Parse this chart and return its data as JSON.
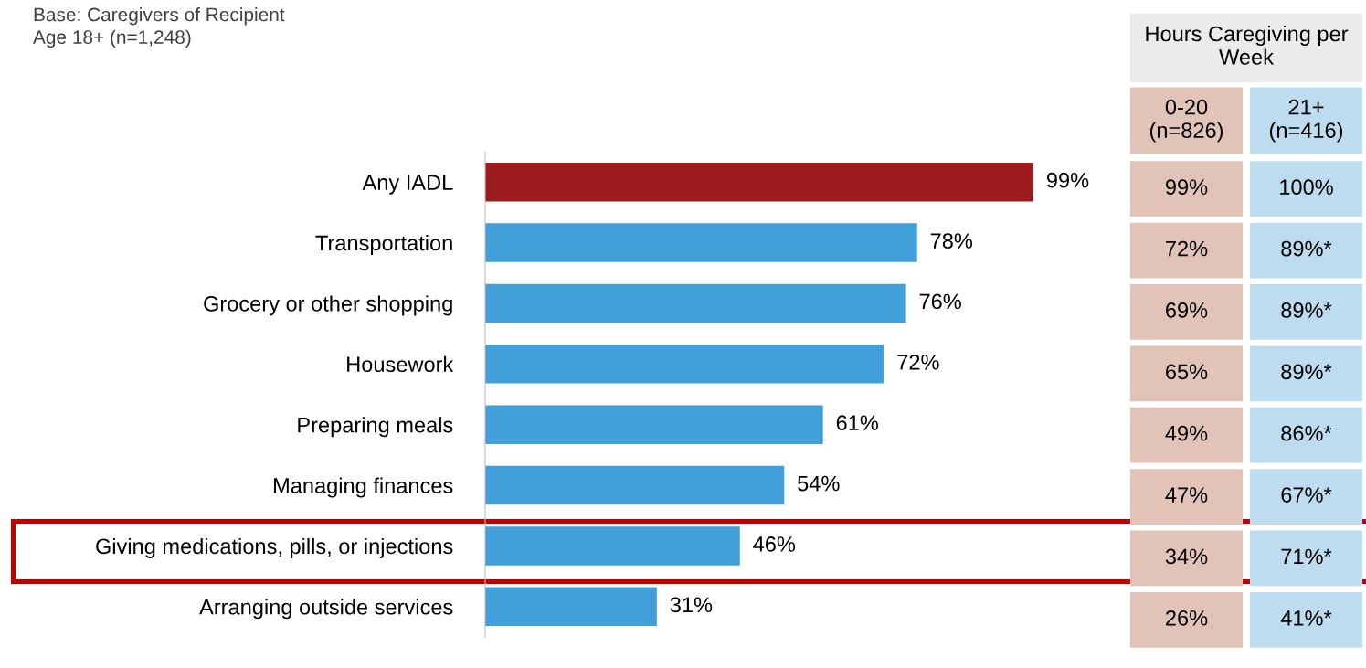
{
  "chart_data": [
    {
      "type": "bar",
      "orientation": "horizontal",
      "annotations": [
        "Base: Caregivers of Recipient\nAge 18+ (n=1,248)"
      ],
      "categories": [
        "Any IADL",
        "Transportation",
        "Grocery or other shopping",
        "Housework",
        "Preparing meals",
        "Managing finances",
        "Giving medications, pills, or injections",
        "Arranging outside services"
      ],
      "values": [
        99,
        78,
        76,
        72,
        61,
        54,
        46,
        31
      ],
      "colors": [
        "#9b1b1f",
        "#419fd9",
        "#419fd9",
        "#419fd9",
        "#419fd9",
        "#419fd9",
        "#419fd9",
        "#419fd9"
      ],
      "value_labels": [
        "99%",
        "78%",
        "76%",
        "72%",
        "61%",
        "54%",
        "46%",
        "31%"
      ],
      "tick_labels": false,
      "grid": false,
      "legend": false
    },
    {
      "type": "heatmap",
      "title": "Hours Caregiving per Week",
      "categories": [
        "0-20\n(n=826)",
        "21+\n(n=416)"
      ],
      "y_categories": [
        null,
        null,
        null,
        null,
        null,
        null,
        null,
        null
      ],
      "colors": [
        "#e2c3b8",
        "#bddcef"
      ],
      "cells": [
        [
          99,
          100
        ],
        [
          72,
          89
        ],
        [
          69,
          89
        ],
        [
          65,
          89
        ],
        [
          49,
          86
        ],
        [
          47,
          67
        ],
        [
          34,
          71
        ],
        [
          26,
          41
        ]
      ],
      "cell_labels": [
        [
          "99%",
          "100%"
        ],
        [
          "72%",
          "89%*"
        ],
        [
          "69%",
          "89%*"
        ],
        [
          "65%",
          "89%*"
        ],
        [
          "49%",
          "86%*"
        ],
        [
          "47%",
          "67%*"
        ],
        [
          "34%",
          "71%*"
        ],
        [
          "26%",
          "41%*"
        ]
      ]
    }
  ]
}
